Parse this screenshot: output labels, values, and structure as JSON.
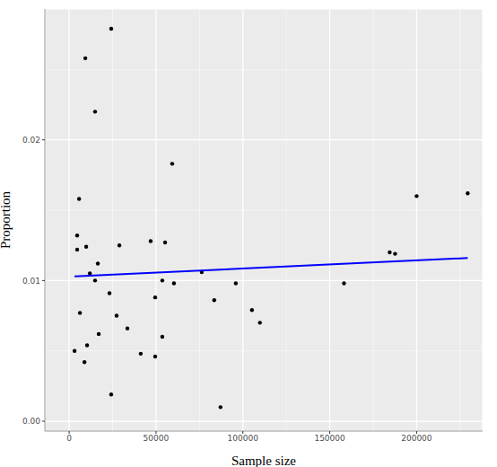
{
  "chart_data": {
    "type": "scatter",
    "x_label": "Sample size",
    "y_label": "Proportion",
    "color": "#000000",
    "marker": "circle",
    "grid": true,
    "xlim": [
      -14000,
      238000
    ],
    "xticks": [
      0,
      50000,
      100000,
      150000,
      200000
    ],
    "ylim": [
      -0.0007,
      0.0293
    ],
    "yticks": [
      {
        "value": 0,
        "label": "0.00"
      },
      {
        "value": 0.01,
        "label": "0.01"
      },
      {
        "value": 0.02,
        "label": "0.02"
      }
    ],
    "x": [
      3100,
      4600,
      4600,
      5700,
      6200,
      9300,
      8800,
      9800,
      10300,
      11900,
      14900,
      14900,
      16500,
      17000,
      23200,
      24200,
      24200,
      27300,
      28900,
      33500,
      41200,
      46900,
      49500,
      49500,
      53600,
      53600,
      55200,
      59300,
      60300,
      76300,
      83500,
      87100,
      95900,
      105200,
      109800,
      158200,
      184500,
      187600,
      200000,
      229400
    ],
    "values": [
      0.005,
      0.0122,
      0.0132,
      0.0158,
      0.0077,
      0.0258,
      0.0042,
      0.0124,
      0.0054,
      0.0105,
      0.022,
      0.01,
      0.0112,
      0.0062,
      0.0091,
      0.0279,
      0.0019,
      0.0075,
      0.0125,
      0.0066,
      0.0048,
      0.0128,
      0.0088,
      0.0046,
      0.01,
      0.006,
      0.0127,
      0.0183,
      0.0098,
      0.0106,
      0.0086,
      0.001,
      0.0098,
      0.0079,
      0.007,
      0.0098,
      0.012,
      0.0119,
      0.016,
      0.0162
    ],
    "fit": {
      "type": "line",
      "color": "#0000ff",
      "x": [
        3100,
        229400
      ],
      "values": [
        0.0103,
        0.0116
      ]
    }
  }
}
